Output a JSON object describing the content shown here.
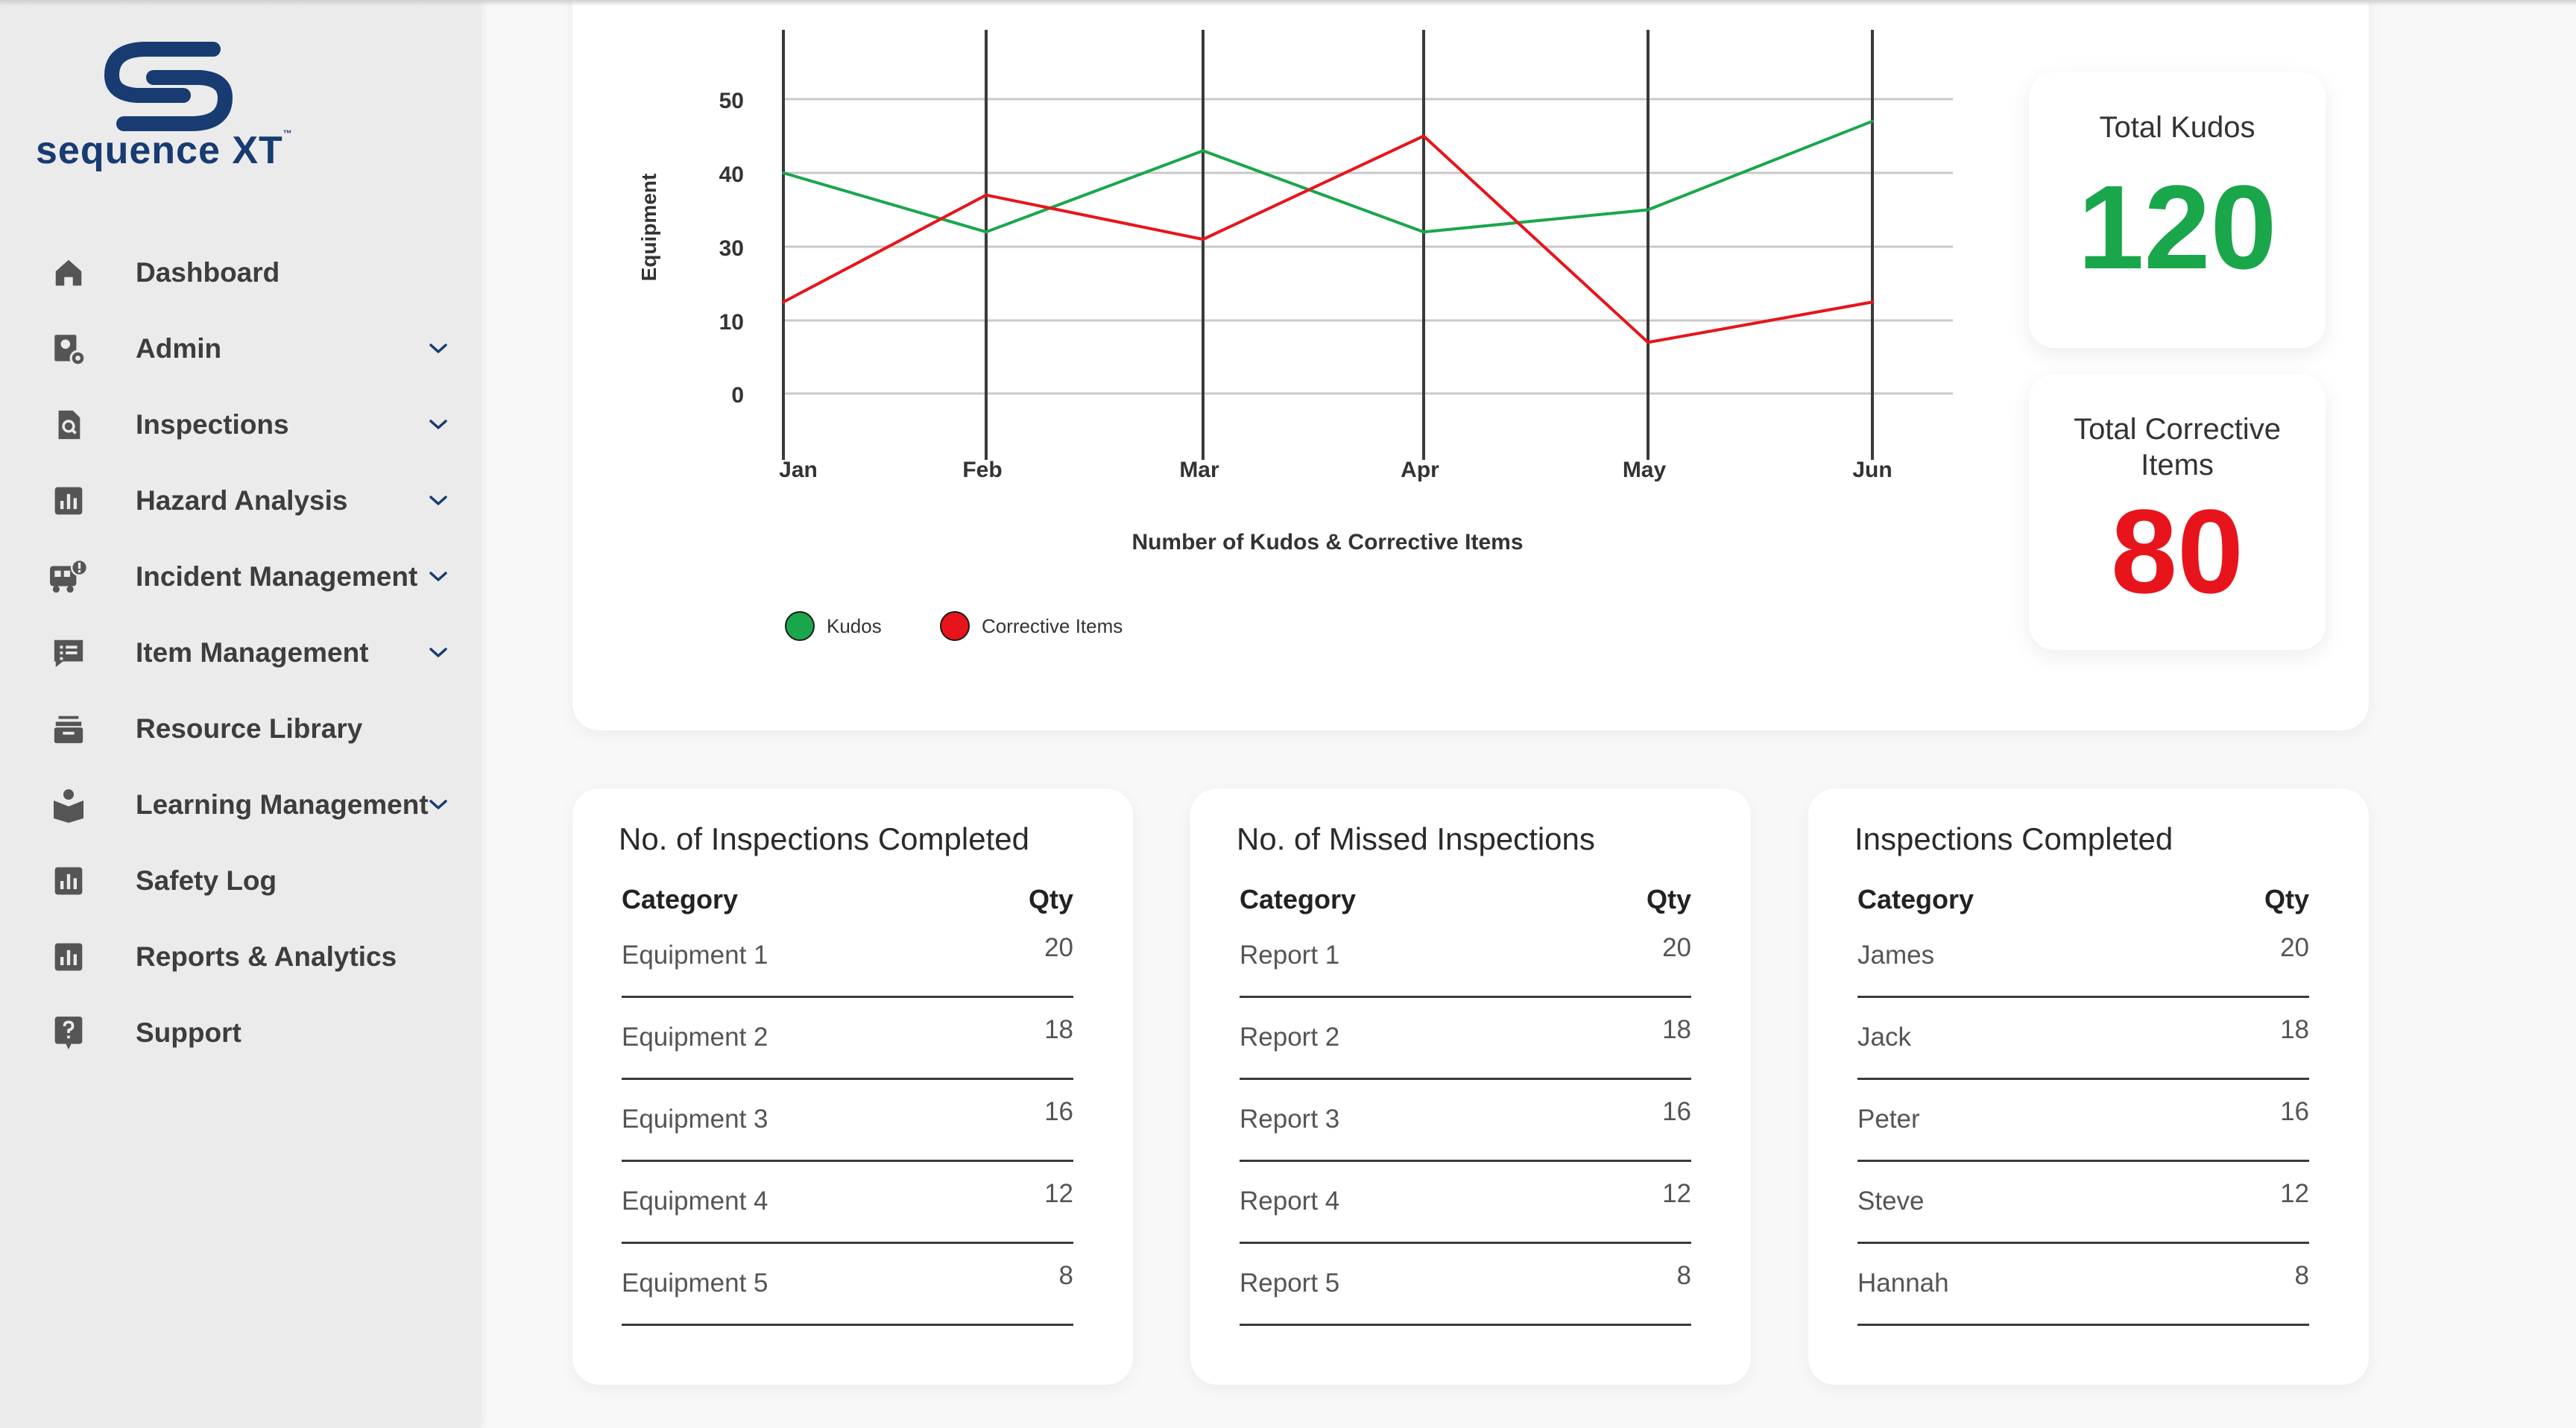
{
  "brand": {
    "name": "sequence XT",
    "tm": "™"
  },
  "sidebar": {
    "items": [
      {
        "label": "Dashboard",
        "icon": "home-icon",
        "has_submenu": false
      },
      {
        "label": "Admin",
        "icon": "user-gear-icon",
        "has_submenu": true
      },
      {
        "label": "Inspections",
        "icon": "document-search-icon",
        "has_submenu": true
      },
      {
        "label": "Hazard Analysis",
        "icon": "bar-chart-icon",
        "has_submenu": true
      },
      {
        "label": "Incident Management",
        "icon": "truck-alert-icon",
        "has_submenu": true
      },
      {
        "label": "Item Management",
        "icon": "list-icon",
        "has_submenu": true
      },
      {
        "label": "Resource Library",
        "icon": "archive-icon",
        "has_submenu": false
      },
      {
        "label": "Learning Management",
        "icon": "reader-icon",
        "has_submenu": true
      },
      {
        "label": "Safety Log",
        "icon": "bar-chart-icon",
        "has_submenu": false
      },
      {
        "label": "Reports & Analytics",
        "icon": "bar-chart-icon",
        "has_submenu": false
      },
      {
        "label": "Support",
        "icon": "question-icon",
        "has_submenu": false
      }
    ]
  },
  "chart_data": {
    "type": "line",
    "categories": [
      "Jan",
      "Feb",
      "Mar",
      "Apr",
      "May",
      "Jun"
    ],
    "y_ticks": [
      "0",
      "10",
      "30",
      "40",
      "50"
    ],
    "series": [
      {
        "name": "Kudos",
        "color": "#1aa64b",
        "values": [
          40,
          32,
          43,
          32,
          35,
          47
        ]
      },
      {
        "name": "Corrective Items",
        "color": "#e8141b",
        "values": [
          15,
          37,
          31,
          45,
          7,
          15
        ]
      }
    ],
    "xlabel": "Number of Kudos & Corrective Items",
    "ylabel": "Equipment",
    "grid": true,
    "legend": "bottom-left"
  },
  "kpis": {
    "kudos": {
      "title": "Total Kudos",
      "value": "120",
      "color": "#1aa64b"
    },
    "corrective": {
      "title": "Total Corrective Items",
      "value": "80",
      "color": "#e8141b"
    }
  },
  "tables": [
    {
      "title": "No. of Inspections Completed",
      "col_category": "Category",
      "col_qty": "Qty",
      "rows": [
        {
          "category": "Equipment 1",
          "qty": "20"
        },
        {
          "category": "Equipment 2",
          "qty": "18"
        },
        {
          "category": "Equipment 3",
          "qty": "16"
        },
        {
          "category": "Equipment 4",
          "qty": "12"
        },
        {
          "category": "Equipment 5",
          "qty": "8"
        }
      ]
    },
    {
      "title": "No. of Missed Inspections",
      "col_category": "Category",
      "col_qty": "Qty",
      "rows": [
        {
          "category": "Report 1",
          "qty": "20"
        },
        {
          "category": "Report 2",
          "qty": "18"
        },
        {
          "category": "Report 3",
          "qty": "16"
        },
        {
          "category": "Report 4",
          "qty": "12"
        },
        {
          "category": "Report 5",
          "qty": "8"
        }
      ]
    },
    {
      "title": "Inspections Completed",
      "col_category": "Category",
      "col_qty": "Qty",
      "rows": [
        {
          "category": "James",
          "qty": "20"
        },
        {
          "category": "Jack",
          "qty": "18"
        },
        {
          "category": "Peter",
          "qty": "16"
        },
        {
          "category": "Steve",
          "qty": "12"
        },
        {
          "category": "Hannah",
          "qty": "8"
        }
      ]
    }
  ]
}
